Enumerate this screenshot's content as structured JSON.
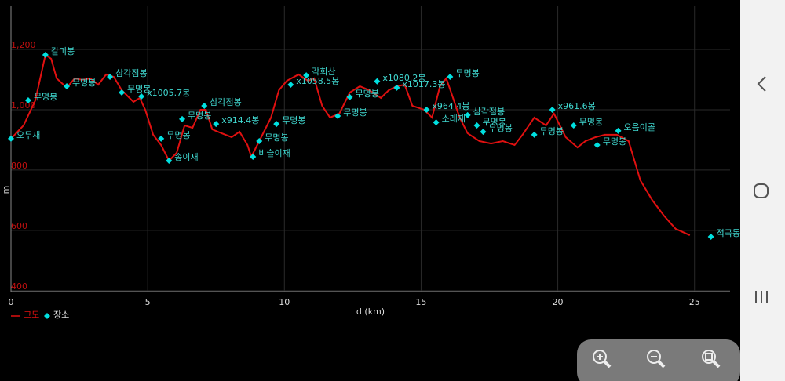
{
  "chart_data": {
    "type": "line",
    "x_label": "d (km)",
    "y_label": "m",
    "xlim": [
      0,
      26.3
    ],
    "ylim": [
      384,
      1330
    ],
    "xticks": [
      0,
      5,
      10,
      15,
      20,
      25
    ],
    "yticks": [
      400,
      600,
      800,
      {
        "value": 1000,
        "label": "1,000"
      },
      {
        "value": 1200,
        "label": "1,200"
      }
    ],
    "grid": true,
    "legend": "bottom-left",
    "series": [
      {
        "name": "고도",
        "color": "#e01010",
        "x": [
          0,
          0.46,
          0.89,
          1.26,
          1.47,
          1.67,
          2.04,
          2.33,
          2.61,
          2.9,
          3.19,
          3.48,
          3.76,
          4.05,
          4.48,
          4.71,
          4.91,
          5.2,
          5.49,
          5.78,
          6.06,
          6.35,
          6.64,
          6.93,
          7.13,
          7.36,
          7.7,
          8.07,
          8.36,
          8.65,
          8.79,
          9.08,
          9.51,
          9.8,
          10.09,
          10.52,
          10.86,
          11.09,
          11.38,
          11.67,
          12.01,
          12.39,
          12.76,
          13.1,
          13.53,
          13.82,
          14.11,
          14.4,
          14.68,
          15.11,
          15.4,
          15.69,
          15.92,
          16.12,
          16.41,
          16.7,
          17.13,
          17.56,
          17.99,
          18.42,
          18.71,
          19.14,
          19.57,
          19.86,
          20.29,
          20.72,
          21.01,
          21.38,
          21.72,
          22.16,
          22.59,
          23.02,
          23.45,
          23.88,
          24.31,
          24.83
        ],
        "values": [
          891,
          935,
          1018,
          1169,
          1156,
          1091,
          1060,
          1091,
          1086,
          1091,
          1070,
          1104,
          1096,
          1052,
          1013,
          1026,
          987,
          904,
          870,
          818,
          844,
          935,
          927,
          987,
          987,
          922,
          909,
          896,
          914,
          870,
          831,
          883,
          961,
          1052,
          1083,
          1104,
          1083,
          1091,
          1000,
          961,
          974,
          1044,
          1065,
          1052,
          1026,
          1052,
          1065,
          1070,
          1000,
          987,
          961,
          1065,
          1091,
          1039,
          961,
          909,
          883,
          875,
          883,
          870,
          904,
          961,
          935,
          974,
          896,
          862,
          883,
          896,
          904,
          904,
          883,
          753,
          688,
          636,
          592,
          571
        ]
      },
      {
        "name": "장소",
        "color": "#00e0e0",
        "type": "scatter",
        "x": [
          0,
          0.63,
          1.26,
          2.04,
          3.62,
          4.05,
          4.77,
          5.49,
          5.78,
          6.26,
          7.07,
          7.5,
          8.85,
          9.08,
          9.71,
          10.23,
          10.8,
          11.95,
          12.39,
          13.39,
          14.11,
          15.2,
          15.55,
          16.06,
          16.7,
          17.04,
          17.27,
          19.14,
          19.8,
          20.58,
          21.44,
          22.21,
          25.6
        ],
        "values": [
          891,
          1018,
          1169,
          1065,
          1096,
          1044,
          1031,
          891,
          818,
          956,
          1000,
          940,
          831,
          883,
          940,
          1070,
          1101,
          966,
          1029,
          1081,
          1060,
          987,
          945,
          1096,
          969,
          935,
          914,
          904,
          987,
          935,
          870,
          917,
          566
        ],
        "labels": [
          "오두재",
          "무명봉",
          "갈미봉",
          "무명봉",
          "삼각점봉",
          "무명봉",
          "x1005.7봉",
          "무명봉",
          "송이재",
          "무명봉",
          "삼각점봉",
          "x914.4봉",
          "비슬이재",
          "무명봉",
          "무명봉",
          "x1058.5봉",
          "각희산",
          "무명봉",
          "무명봉",
          "x1080.2봉",
          "x1017.3봉",
          "x964.4봉",
          "소래재",
          "무명봉",
          "삼각점봉",
          "무명봉",
          "무명봉",
          "무명봉",
          "x961.6봉",
          "무명봉",
          "무명봉",
          "오음이골",
          "적곡동"
        ]
      }
    ]
  }
}
